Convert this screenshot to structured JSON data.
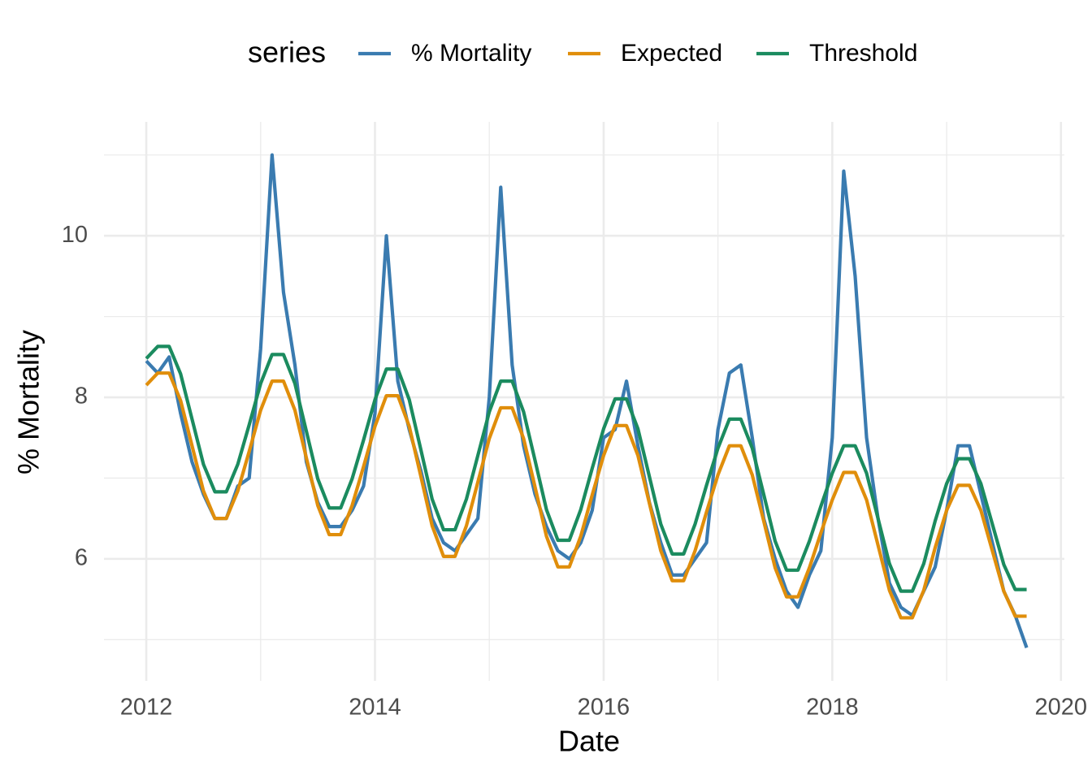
{
  "chart_data": {
    "type": "line",
    "legend_title": "series",
    "xlabel": "Date",
    "ylabel": "% Mortality",
    "x": [
      2012.0,
      2012.1,
      2012.2,
      2012.3,
      2012.4,
      2012.5,
      2012.6,
      2012.7,
      2012.8,
      2012.9,
      2013.0,
      2013.1,
      2013.2,
      2013.3,
      2013.4,
      2013.5,
      2013.6,
      2013.7,
      2013.8,
      2013.9,
      2014.0,
      2014.1,
      2014.2,
      2014.3,
      2014.4,
      2014.5,
      2014.6,
      2014.7,
      2014.8,
      2014.9,
      2015.0,
      2015.1,
      2015.2,
      2015.3,
      2015.4,
      2015.5,
      2015.6,
      2015.7,
      2015.8,
      2015.9,
      2016.0,
      2016.1,
      2016.2,
      2016.3,
      2016.4,
      2016.5,
      2016.6,
      2016.7,
      2016.8,
      2016.9,
      2017.0,
      2017.1,
      2017.2,
      2017.3,
      2017.4,
      2017.5,
      2017.6,
      2017.7,
      2017.8,
      2017.9,
      2018.0,
      2018.1,
      2018.2,
      2018.3,
      2018.4,
      2018.5,
      2018.6,
      2018.7,
      2018.8,
      2018.9,
      2019.0,
      2019.1,
      2019.2,
      2019.3,
      2019.4,
      2019.5,
      2019.6,
      2019.7
    ],
    "series": [
      {
        "name": "% Mortality",
        "color": "#3a7bb0",
        "values": [
          8.45,
          8.3,
          8.5,
          7.8,
          7.2,
          6.8,
          6.5,
          6.5,
          6.9,
          7.0,
          8.6,
          11.0,
          9.3,
          8.4,
          7.2,
          6.7,
          6.4,
          6.4,
          6.6,
          6.9,
          7.8,
          10.0,
          8.2,
          7.6,
          7.1,
          6.5,
          6.2,
          6.1,
          6.3,
          6.5,
          8.0,
          10.6,
          8.4,
          7.4,
          6.8,
          6.4,
          6.1,
          6.0,
          6.2,
          6.6,
          7.5,
          7.6,
          8.2,
          7.4,
          6.7,
          6.2,
          5.8,
          5.8,
          6.0,
          6.2,
          7.6,
          8.3,
          8.4,
          7.5,
          6.5,
          6.0,
          5.6,
          5.4,
          5.8,
          6.1,
          7.5,
          10.8,
          9.5,
          7.5,
          6.5,
          5.7,
          5.4,
          5.3,
          5.6,
          5.9,
          6.6,
          7.4,
          7.4,
          6.8,
          6.2,
          5.6,
          5.3,
          4.9
        ]
      },
      {
        "name": "Expected",
        "color": "#e08e0b",
        "values": [
          8.15,
          8.3,
          8.3,
          7.96,
          7.4,
          6.84,
          6.5,
          6.5,
          6.84,
          7.33,
          7.84,
          8.2,
          8.2,
          7.84,
          7.25,
          6.66,
          6.3,
          6.3,
          6.66,
          7.14,
          7.64,
          8.02,
          8.02,
          7.64,
          7.03,
          6.41,
          6.03,
          6.03,
          6.41,
          6.95,
          7.49,
          7.87,
          7.87,
          7.49,
          6.89,
          6.28,
          5.9,
          5.9,
          6.28,
          6.79,
          7.28,
          7.65,
          7.65,
          7.28,
          6.69,
          6.1,
          5.73,
          5.73,
          6.1,
          6.58,
          7.04,
          7.4,
          7.4,
          7.04,
          6.47,
          5.89,
          5.53,
          5.53,
          5.89,
          6.32,
          6.73,
          7.07,
          7.07,
          6.73,
          6.17,
          5.61,
          5.27,
          5.27,
          5.61,
          6.14,
          6.6,
          6.91,
          6.91,
          6.6,
          6.1,
          5.6,
          5.29,
          5.29
        ]
      },
      {
        "name": "Threshold",
        "color": "#1b8b5f",
        "values": [
          8.48,
          8.63,
          8.63,
          8.29,
          7.73,
          7.17,
          6.83,
          6.83,
          7.17,
          7.66,
          8.17,
          8.53,
          8.53,
          8.17,
          7.58,
          6.99,
          6.63,
          6.63,
          6.99,
          7.47,
          7.97,
          8.35,
          8.35,
          7.97,
          7.36,
          6.74,
          6.36,
          6.36,
          6.74,
          7.28,
          7.82,
          8.2,
          8.2,
          7.82,
          7.22,
          6.61,
          6.23,
          6.23,
          6.61,
          7.12,
          7.61,
          7.98,
          7.98,
          7.61,
          7.02,
          6.43,
          6.06,
          6.06,
          6.43,
          6.91,
          7.37,
          7.73,
          7.73,
          7.37,
          6.8,
          6.22,
          5.86,
          5.86,
          6.22,
          6.65,
          7.06,
          7.4,
          7.4,
          7.06,
          6.5,
          5.94,
          5.6,
          5.6,
          5.94,
          6.47,
          6.93,
          7.24,
          7.24,
          6.93,
          6.43,
          5.93,
          5.62,
          5.62
        ]
      }
    ],
    "xlim": [
      2011.63,
      2020.03
    ],
    "ylim": [
      4.49,
      11.41
    ],
    "xticks": [
      2012,
      2014,
      2016,
      2018,
      2020
    ],
    "yticks": [
      6,
      8,
      10
    ],
    "x_minor_grid": [
      2013,
      2015,
      2017,
      2019
    ],
    "y_minor_grid": [
      5,
      7,
      9,
      11
    ],
    "grid": true,
    "legend": "top"
  }
}
